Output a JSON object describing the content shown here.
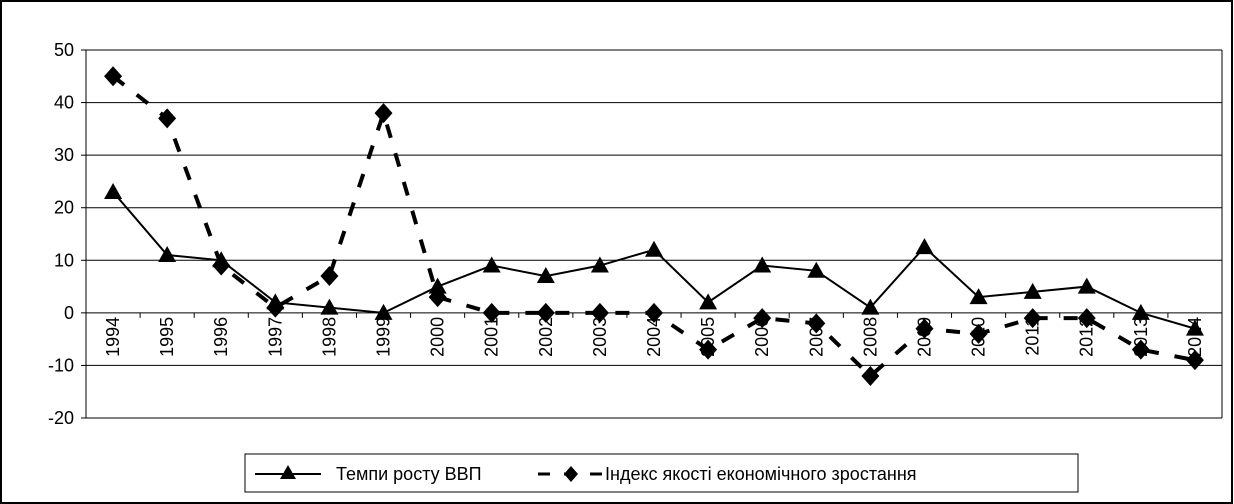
{
  "chart_data": {
    "type": "line",
    "title": "",
    "xlabel": "",
    "ylabel": "",
    "ylim": [
      -20,
      50
    ],
    "yticks": [
      "50",
      "40",
      "30",
      "20",
      "10",
      "0",
      "-10",
      "-20"
    ],
    "categories": [
      "1994",
      "1995",
      "1996",
      "1997",
      "1998",
      "1999",
      "2000",
      "2001",
      "2002",
      "2003",
      "2004",
      "2005",
      "2006",
      "2007",
      "2008",
      "2009",
      "2010",
      "2011",
      "2012",
      "2013",
      "2014"
    ],
    "grid": true,
    "legend_position": "bottom",
    "series": [
      {
        "name": "Темпи росту ВВП",
        "marker": "triangle",
        "line": "solid",
        "color": "#000000",
        "values": [
          23,
          11,
          10,
          2,
          1,
          0,
          5,
          9,
          7,
          9,
          12,
          2,
          9,
          8,
          1,
          12.5,
          3,
          4,
          5,
          0,
          -3
        ]
      },
      {
        "name": "Індекс якості економічного зростання",
        "marker": "diamond",
        "line": "dashed",
        "color": "#000000",
        "values": [
          45,
          37,
          9,
          1,
          7,
          38,
          3,
          0,
          0,
          0,
          0,
          -7,
          -1,
          -2,
          -12,
          -3,
          -4,
          -1,
          -1,
          -7,
          -9
        ]
      }
    ]
  }
}
